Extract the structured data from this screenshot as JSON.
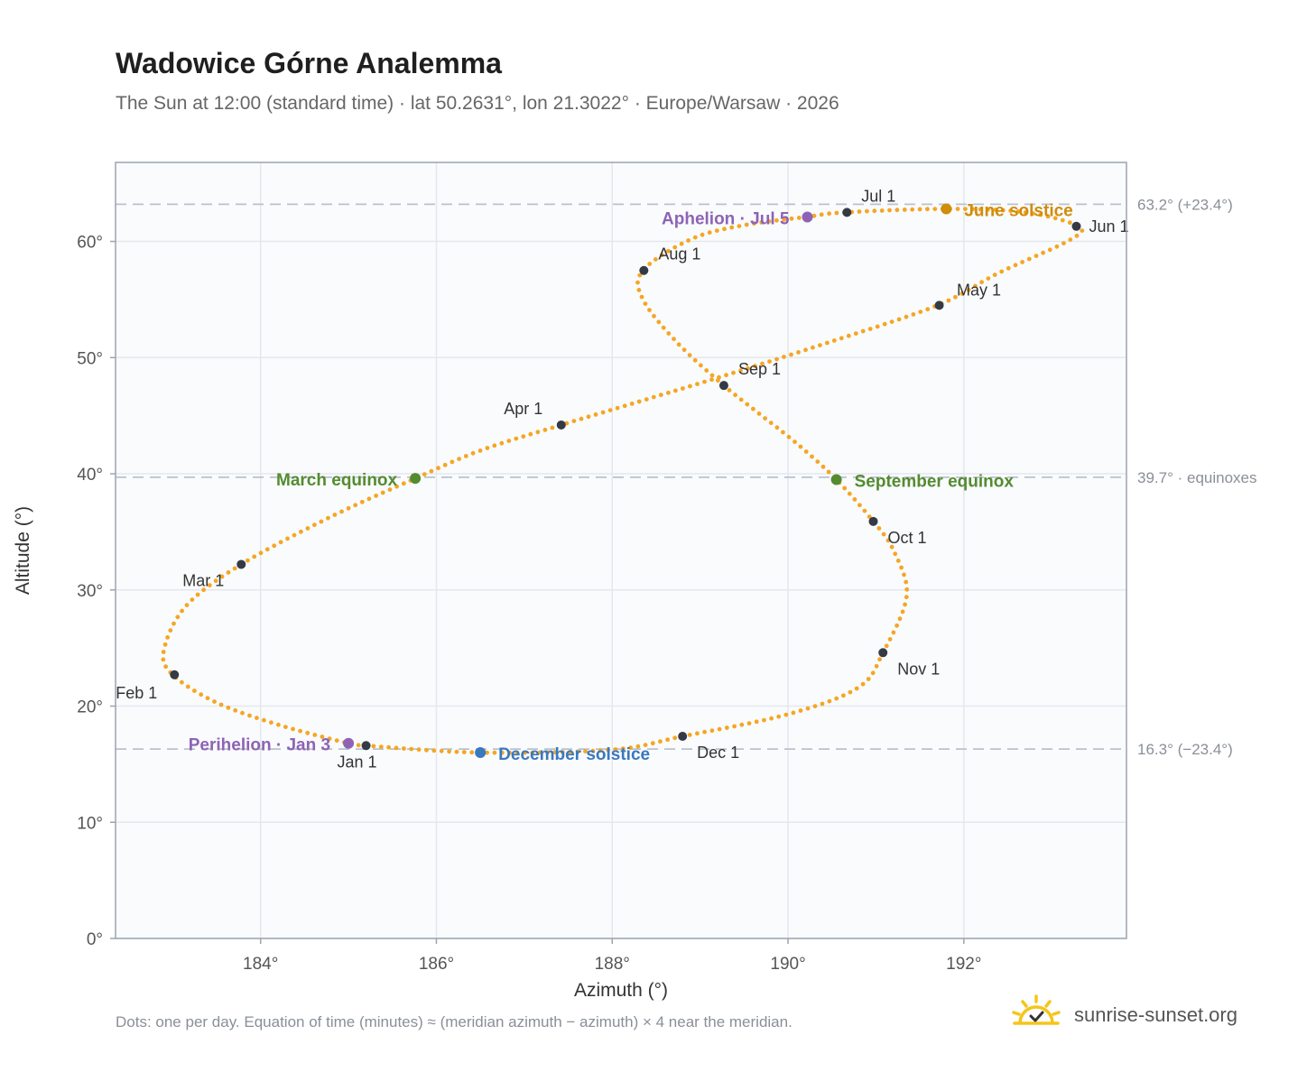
{
  "title": "Wadowice Górne Analemma",
  "subtitle": "The Sun at 12:00 (standard time) · lat 50.2631°, lon 21.3022° · Europe/Warsaw · 2026",
  "footnote": "Dots: one per day. Equation of time (minutes) ≈ (meridian azimuth − azimuth) × 4 near the meridian.",
  "brand": {
    "text": "sunrise-sunset.org",
    "icon": "sun-logo-icon"
  },
  "colors": {
    "path": "#f5a623",
    "month": "#333a45",
    "equinox": "#558b2f",
    "june": "#d08c0a",
    "december": "#3a78bf",
    "apsis": "#8e63b5",
    "grid": "#e4e8ee",
    "plot_bg": "#f9fbfd",
    "frame": "#9aa4b2",
    "ref_line": "#b9c2cd"
  },
  "chart_data": {
    "type": "scatter",
    "xlabel": "Azimuth (°)",
    "ylabel": "Altitude (°)",
    "xlim": [
      182.35,
      193.85
    ],
    "ylim": [
      0,
      66.8
    ],
    "x_ticks": [
      184,
      186,
      188,
      190,
      192
    ],
    "x_tick_labels": [
      "184°",
      "186°",
      "188°",
      "190°",
      "192°"
    ],
    "y_ticks": [
      0,
      10,
      20,
      30,
      40,
      50,
      60
    ],
    "y_tick_labels": [
      "0°",
      "10°",
      "20°",
      "30°",
      "40°",
      "50°",
      "60°"
    ],
    "grid": true,
    "reference_lines": [
      {
        "y": 63.2,
        "label": "63.2° (+23.4°)"
      },
      {
        "y": 39.7,
        "label": "39.7° · equinoxes"
      },
      {
        "y": 16.3,
        "label": "16.3° (−23.4°)"
      }
    ],
    "path_anchors": [
      [
        185.2,
        16.6
      ],
      [
        186.5,
        16.0
      ],
      [
        188.0,
        16.25
      ],
      [
        188.8,
        17.4
      ],
      [
        190.0,
        19.3
      ],
      [
        190.8,
        21.6
      ],
      [
        191.08,
        24.6
      ],
      [
        191.35,
        29.5
      ],
      [
        191.2,
        33.4
      ],
      [
        190.97,
        35.9
      ],
      [
        190.55,
        39.5
      ],
      [
        190.1,
        42.6
      ],
      [
        189.65,
        45.3
      ],
      [
        189.27,
        47.6
      ],
      [
        188.75,
        51.2
      ],
      [
        188.35,
        55.0
      ],
      [
        188.35,
        57.5
      ],
      [
        188.9,
        60.2
      ],
      [
        189.5,
        61.4
      ],
      [
        190.2,
        62.1
      ],
      [
        190.65,
        62.5
      ],
      [
        191.8,
        62.8
      ],
      [
        192.7,
        62.5
      ],
      [
        193.3,
        61.3
      ],
      [
        193.2,
        60.1
      ],
      [
        192.4,
        57.3
      ],
      [
        191.7,
        54.5
      ],
      [
        190.5,
        51.4
      ],
      [
        189.3,
        48.5
      ],
      [
        188.3,
        46.2
      ],
      [
        187.42,
        44.2
      ],
      [
        186.5,
        42.0
      ],
      [
        185.76,
        39.6
      ],
      [
        184.8,
        36.3
      ],
      [
        183.78,
        32.2
      ],
      [
        183.15,
        28.6
      ],
      [
        182.9,
        24.8
      ],
      [
        183.0,
        22.7
      ],
      [
        183.5,
        20.3
      ],
      [
        184.2,
        18.4
      ],
      [
        185.0,
        16.8
      ],
      [
        185.2,
        16.6
      ]
    ],
    "month_markers": [
      {
        "label": "Jan 1",
        "x": 185.2,
        "y": 16.6
      },
      {
        "label": "Feb 1",
        "x": 183.02,
        "y": 22.7
      },
      {
        "label": "Mar 1",
        "x": 183.78,
        "y": 32.2
      },
      {
        "label": "Apr 1",
        "x": 187.42,
        "y": 44.2
      },
      {
        "label": "May 1",
        "x": 191.72,
        "y": 54.5
      },
      {
        "label": "Jun 1",
        "x": 193.28,
        "y": 61.3
      },
      {
        "label": "Jul 1",
        "x": 190.67,
        "y": 62.5
      },
      {
        "label": "Aug 1",
        "x": 188.36,
        "y": 57.5
      },
      {
        "label": "Sep 1",
        "x": 189.27,
        "y": 47.6
      },
      {
        "label": "Oct 1",
        "x": 190.97,
        "y": 35.9
      },
      {
        "label": "Nov 1",
        "x": 191.08,
        "y": 24.6
      },
      {
        "label": "Dec 1",
        "x": 188.8,
        "y": 17.4
      }
    ],
    "events": [
      {
        "label": "March equinox",
        "x": 185.76,
        "y": 39.6,
        "color": "#558b2f"
      },
      {
        "label": "September equinox",
        "x": 190.55,
        "y": 39.5,
        "color": "#558b2f"
      },
      {
        "label": "June solstice",
        "x": 191.8,
        "y": 62.8,
        "color": "#d08c0a"
      },
      {
        "label": "December solstice",
        "x": 186.5,
        "y": 16.0,
        "color": "#3a78bf"
      },
      {
        "label": "Aphelion · Jul 5",
        "x": 190.22,
        "y": 62.1,
        "color": "#8e63b5"
      },
      {
        "label": "Perihelion · Jan 3",
        "x": 185.0,
        "y": 16.8,
        "color": "#8e63b5"
      }
    ]
  }
}
